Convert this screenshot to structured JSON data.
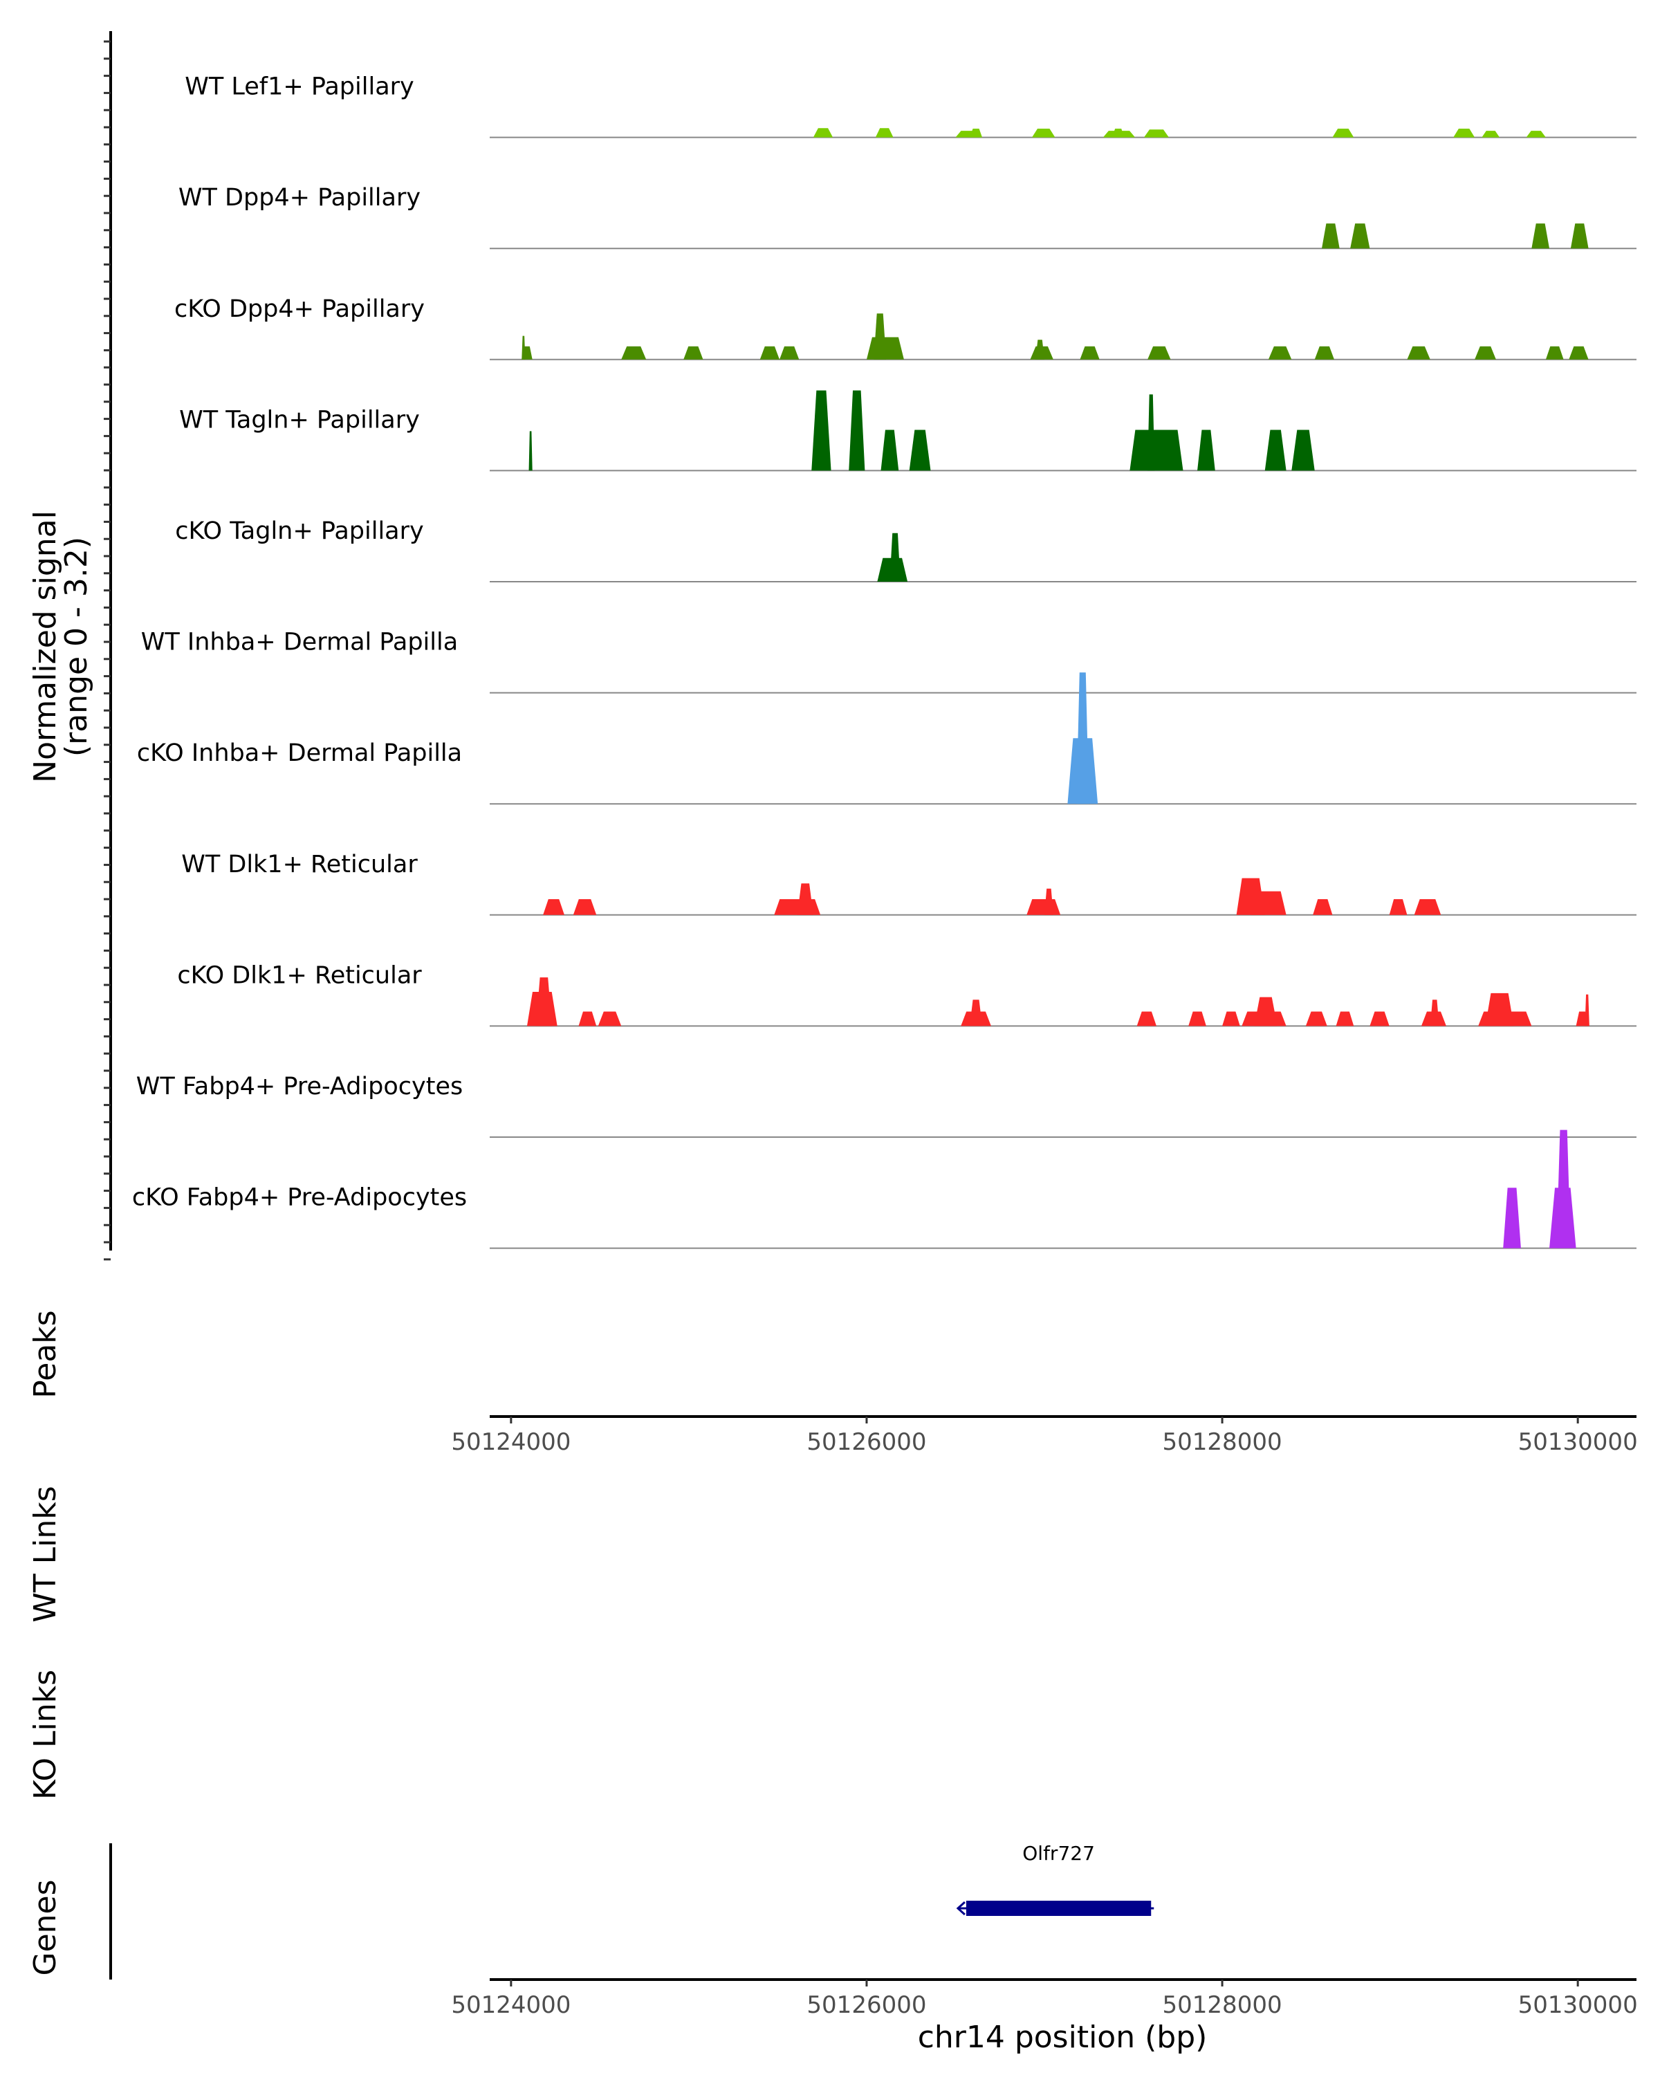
{
  "chart_data": {
    "type": "area",
    "title": "",
    "xlabel": "chr14 position (bp)",
    "ylabel": "Normalized signal",
    "ylabel_range": "(range 0 - 3.2)",
    "xlim": [
      50123880,
      50130330
    ],
    "ylim": [
      0,
      3.2
    ],
    "x_ticks": [
      50124000,
      50126000,
      50128000,
      50130000
    ],
    "x_tick_labels": [
      "50124000",
      "50126000",
      "50128000",
      "50130000"
    ],
    "y_tick_count": 72,
    "panel_labels": {
      "peaks": "Peaks",
      "wt_links": "WT Links",
      "ko_links": "KO Links",
      "genes": "Genes"
    },
    "genes": [
      {
        "name": "Olfr727",
        "start": 50126560,
        "end": 50127600,
        "strand": "-",
        "color": "#00008b"
      }
    ],
    "tracks": [
      {
        "name": "WT Lef1+ Papillary",
        "color": "#7ccd00",
        "peaks": [
          [
            50125700,
            50125810,
            0.35
          ],
          [
            50126050,
            50126150,
            0.35
          ],
          [
            50126500,
            50126630,
            0.25
          ],
          [
            50126580,
            50126650,
            0.33
          ],
          [
            50126930,
            50127060,
            0.33
          ],
          [
            50127330,
            50127510,
            0.25
          ],
          [
            50127380,
            50127450,
            0.33
          ],
          [
            50127560,
            50127700,
            0.3
          ],
          [
            50128620,
            50128740,
            0.33
          ],
          [
            50129300,
            50129420,
            0.33
          ],
          [
            50129460,
            50129560,
            0.25
          ],
          [
            50129710,
            50129820,
            0.25
          ]
        ]
      },
      {
        "name": "WT Dpp4+ Papillary",
        "color": "#4a8c00",
        "peaks": [
          [
            50128560,
            50128660,
            0.95
          ],
          [
            50128720,
            50128830,
            0.95
          ],
          [
            50129740,
            50129840,
            0.95
          ],
          [
            50129960,
            50130060,
            0.95
          ]
        ]
      },
      {
        "name": "cKO Dpp4+ Papillary",
        "color": "#4a8c00",
        "peaks": [
          [
            50124060,
            50124080,
            0.9
          ],
          [
            50124060,
            50124120,
            0.5
          ],
          [
            50124620,
            50124760,
            0.5
          ],
          [
            50124970,
            50125080,
            0.5
          ],
          [
            50125400,
            50125510,
            0.5
          ],
          [
            50125510,
            50125620,
            0.5
          ],
          [
            50126000,
            50126210,
            0.85
          ],
          [
            50126040,
            50126110,
            1.75
          ],
          [
            50126920,
            50127050,
            0.5
          ],
          [
            50126950,
            50127000,
            0.75
          ],
          [
            50127200,
            50127310,
            0.5
          ],
          [
            50127580,
            50127710,
            0.5
          ],
          [
            50128260,
            50128390,
            0.5
          ],
          [
            50128520,
            50128630,
            0.5
          ],
          [
            50129040,
            50129170,
            0.5
          ],
          [
            50129420,
            50129540,
            0.5
          ],
          [
            50129820,
            50129920,
            0.5
          ],
          [
            50129950,
            50130060,
            0.5
          ]
        ]
      },
      {
        "name": "WT Tagln+ Papillary",
        "color": "#006400",
        "peaks": [
          [
            50124100,
            50124120,
            1.5
          ],
          [
            50125690,
            50125800,
            3.05
          ],
          [
            50125900,
            50125990,
            3.05
          ],
          [
            50126080,
            50126180,
            1.55
          ],
          [
            50126240,
            50126360,
            1.55
          ],
          [
            50127480,
            50127780,
            1.55
          ],
          [
            50127580,
            50127620,
            2.9
          ],
          [
            50127860,
            50127960,
            1.55
          ],
          [
            50128240,
            50128360,
            1.55
          ],
          [
            50128390,
            50128520,
            1.55
          ]
        ]
      },
      {
        "name": "cKO Tagln+ Papillary",
        "color": "#006400",
        "peaks": [
          [
            50126060,
            50126230,
            0.9
          ],
          [
            50126130,
            50126190,
            1.85
          ]
        ]
      },
      {
        "name": "WT Inhba+ Dermal Papilla",
        "color": "#56a0e6",
        "peaks": []
      },
      {
        "name": "cKO Inhba+ Dermal Papilla",
        "color": "#56a0e6",
        "peaks": [
          [
            50127130,
            50127300,
            2.5
          ],
          [
            50127180,
            50127250,
            5.0
          ]
        ]
      },
      {
        "name": "WT Dlk1+ Reticular",
        "color": "#fa2828",
        "peaks": [
          [
            50124180,
            50124300,
            0.6
          ],
          [
            50124350,
            50124480,
            0.6
          ],
          [
            50125480,
            50125740,
            0.6
          ],
          [
            50125610,
            50125700,
            1.2
          ],
          [
            50126900,
            50127090,
            0.6
          ],
          [
            50127000,
            50127050,
            1.0
          ],
          [
            50128080,
            50128240,
            1.4
          ],
          [
            50128160,
            50128360,
            0.9
          ],
          [
            50128510,
            50128620,
            0.6
          ],
          [
            50128940,
            50129040,
            0.6
          ],
          [
            50129080,
            50129230,
            0.6
          ]
        ]
      },
      {
        "name": "cKO Dlk1+ Reticular",
        "color": "#fa2828",
        "peaks": [
          [
            50124090,
            50124260,
            1.3
          ],
          [
            50124140,
            50124230,
            1.85
          ],
          [
            50124380,
            50124480,
            0.55
          ],
          [
            50124490,
            50124620,
            0.55
          ],
          [
            50126530,
            50126700,
            0.55
          ],
          [
            50126580,
            50126650,
            1.0
          ],
          [
            50127520,
            50127630,
            0.55
          ],
          [
            50127810,
            50127910,
            0.55
          ],
          [
            50128000,
            50128100,
            0.55
          ],
          [
            50128110,
            50128360,
            0.55
          ],
          [
            50128180,
            50128310,
            1.1
          ],
          [
            50128470,
            50128590,
            0.55
          ],
          [
            50128640,
            50128740,
            0.55
          ],
          [
            50128830,
            50128940,
            0.55
          ],
          [
            50129120,
            50129260,
            0.55
          ],
          [
            50129170,
            50129220,
            1.0
          ],
          [
            50129440,
            50129740,
            0.55
          ],
          [
            50129480,
            50129640,
            1.25
          ],
          [
            50129990,
            50130060,
            0.55
          ],
          [
            50130040,
            50130065,
            1.2
          ]
        ]
      },
      {
        "name": "WT Fabp4+ Pre-Adipocytes",
        "color": "#b030f0",
        "peaks": []
      },
      {
        "name": "cKO Fabp4+ Pre-Adipocytes",
        "color": "#b030f0",
        "peaks": [
          [
            50129580,
            50129680,
            2.3
          ],
          [
            50129840,
            50129990,
            2.3
          ],
          [
            50129880,
            50129960,
            4.5
          ]
        ]
      }
    ]
  }
}
